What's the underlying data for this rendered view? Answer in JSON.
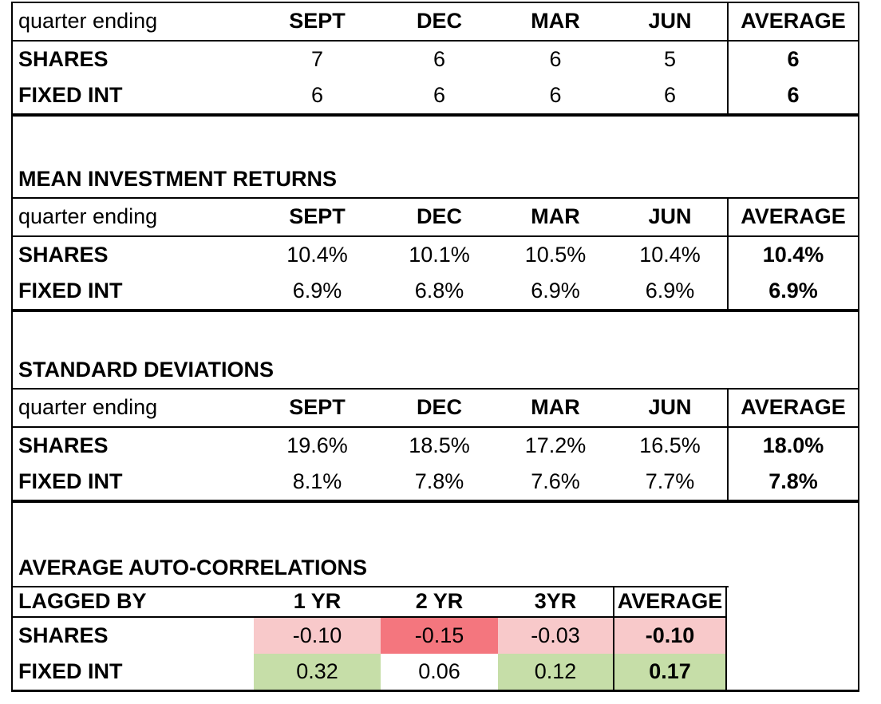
{
  "colors": {
    "negative_light": "#F8C9CA",
    "negative_strong": "#F4767E",
    "positive_green": "#C6DEA8",
    "border": "#000000",
    "background": "#FFFFFF"
  },
  "tables": [
    {
      "id": "quarter-counts",
      "title": "",
      "header": [
        "quarter ending",
        "SEPT",
        "DEC",
        "MAR",
        "JUN",
        "AVERAGE"
      ],
      "rows": [
        {
          "label": "SHARES",
          "values": [
            "7",
            "6",
            "6",
            "5"
          ],
          "average": "6"
        },
        {
          "label": "FIXED INT",
          "values": [
            "6",
            "6",
            "6",
            "6"
          ],
          "average": "6"
        }
      ]
    },
    {
      "id": "mean-investment-returns",
      "title": "MEAN INVESTMENT RETURNS",
      "header": [
        "quarter ending",
        "SEPT",
        "DEC",
        "MAR",
        "JUN",
        "AVERAGE"
      ],
      "rows": [
        {
          "label": "SHARES",
          "values": [
            "10.4%",
            "10.1%",
            "10.5%",
            "10.4%"
          ],
          "average": "10.4%"
        },
        {
          "label": "FIXED INT",
          "values": [
            "6.9%",
            "6.8%",
            "6.9%",
            "6.9%"
          ],
          "average": "6.9%"
        }
      ]
    },
    {
      "id": "standard-deviations",
      "title": "STANDARD DEVIATIONS",
      "header": [
        "quarter ending",
        "SEPT",
        "DEC",
        "MAR",
        "JUN",
        "AVERAGE"
      ],
      "rows": [
        {
          "label": "SHARES",
          "values": [
            "19.6%",
            "18.5%",
            "17.2%",
            "16.5%"
          ],
          "average": "18.0%"
        },
        {
          "label": "FIXED INT",
          "values": [
            "8.1%",
            "7.8%",
            "7.6%",
            "7.7%"
          ],
          "average": "7.8%"
        }
      ]
    },
    {
      "id": "average-auto-correlations",
      "title": "AVERAGE AUTO-CORRELATIONS",
      "header": [
        "LAGGED BY",
        "1 YR",
        "2 YR",
        "3YR",
        "AVERAGE"
      ],
      "rows": [
        {
          "label": "SHARES",
          "values": [
            "-0.10",
            "-0.15",
            "-0.03"
          ],
          "average": "-0.10",
          "cell_bg": [
            "#F8C9CA",
            "#F4767E",
            "#F8C9CA"
          ],
          "average_bg": "#F8C9CA"
        },
        {
          "label": "FIXED INT",
          "values": [
            "0.32",
            "0.06",
            "0.12"
          ],
          "average": "0.17",
          "cell_bg": [
            "#C6DEA8",
            "",
            "#C6DEA8"
          ],
          "average_bg": "#C6DEA8"
        }
      ]
    }
  ]
}
